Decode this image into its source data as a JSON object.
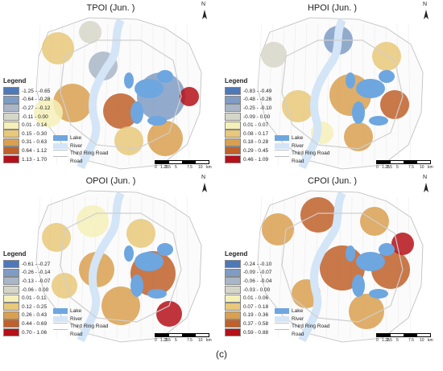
{
  "panels": [
    {
      "title": "TPOI (Jun. )",
      "legend_title": "Legend",
      "classes": [
        {
          "label": "-1.25 - -0.65",
          "color": "#4e79b8"
        },
        {
          "label": "-0.64 - -0.28",
          "color": "#7f9cc4"
        },
        {
          "label": "-0.27 - -0.12",
          "color": "#a9b6c8"
        },
        {
          "label": "-0.11 - 0.00",
          "color": "#d6d6c8"
        },
        {
          "label": "0.01 - 0.14",
          "color": "#f5f0b8"
        },
        {
          "label": "0.15 - 0.30",
          "color": "#e8c87a"
        },
        {
          "label": "0.31 - 0.63",
          "color": "#d9a050"
        },
        {
          "label": "0.64 - 1.12",
          "color": "#c0602a"
        },
        {
          "label": "1.13 - 1.70",
          "color": "#b5111a"
        }
      ]
    },
    {
      "title": "HPOI (Jun. )",
      "legend_title": "Legend",
      "classes": [
        {
          "label": "-0.83 - -0.49",
          "color": "#4e79b8"
        },
        {
          "label": "-0.48 - -0.26",
          "color": "#7f9cc4"
        },
        {
          "label": "-0.25 - -0.10",
          "color": "#a9b6c8"
        },
        {
          "label": "-0.09 - 0.00",
          "color": "#d6d6c8"
        },
        {
          "label": "0.01 - 0.07",
          "color": "#f5f0b8"
        },
        {
          "label": "0.08 - 0.17",
          "color": "#e8c87a"
        },
        {
          "label": "0.18 - 0.28",
          "color": "#d9a050"
        },
        {
          "label": "0.29 - 0.45",
          "color": "#c0602a"
        },
        {
          "label": "0.46 - 1.09",
          "color": "#b5111a"
        }
      ]
    },
    {
      "title": "OPOI (Jun. )",
      "legend_title": "Legend",
      "classes": [
        {
          "label": "-0.61 - -0.27",
          "color": "#4e79b8"
        },
        {
          "label": "-0.26 - -0.14",
          "color": "#7f9cc4"
        },
        {
          "label": "-0.13 - -0.07",
          "color": "#a9b6c8"
        },
        {
          "label": "-0.06 - 0.00",
          "color": "#d6d6c8"
        },
        {
          "label": "0.01 - 0.11",
          "color": "#f5f0b8"
        },
        {
          "label": "0.12 - 0.25",
          "color": "#e8c87a"
        },
        {
          "label": "0.26 - 0.43",
          "color": "#d9a050"
        },
        {
          "label": "0.44 - 0.69",
          "color": "#c0602a"
        },
        {
          "label": "0.70 - 1.06",
          "color": "#b5111a"
        }
      ]
    },
    {
      "title": "CPOI (Jun. )",
      "legend_title": "Legend",
      "classes": [
        {
          "label": "-0.24 - -0.10",
          "color": "#4e79b8"
        },
        {
          "label": "-0.09 - -0.07",
          "color": "#7f9cc4"
        },
        {
          "label": "-0.06 - -0.04",
          "color": "#a9b6c8"
        },
        {
          "label": "-0.03 - 0.00",
          "color": "#d6d6c8"
        },
        {
          "label": "0.01 - 0.06",
          "color": "#f5f0b8"
        },
        {
          "label": "0.07 - 0.18",
          "color": "#e8c87a"
        },
        {
          "label": "0.19 - 0.36",
          "color": "#d9a050"
        },
        {
          "label": "0.37 - 0.58",
          "color": "#c0602a"
        },
        {
          "label": "0.59 - 0.88",
          "color": "#b5111a"
        }
      ]
    }
  ],
  "base_legend": {
    "lake": "Lake",
    "river": "River",
    "road": "Third Ring Road",
    "road_cont": "Road",
    "lake_color": "#6ea6e0",
    "river_color": "#d3e5f6"
  },
  "north_label": "N",
  "scale_labels": [
    "0",
    "1.25",
    "2.5",
    "5",
    "7.5",
    "10"
  ],
  "scale_unit": "km",
  "caption": "(c)"
}
